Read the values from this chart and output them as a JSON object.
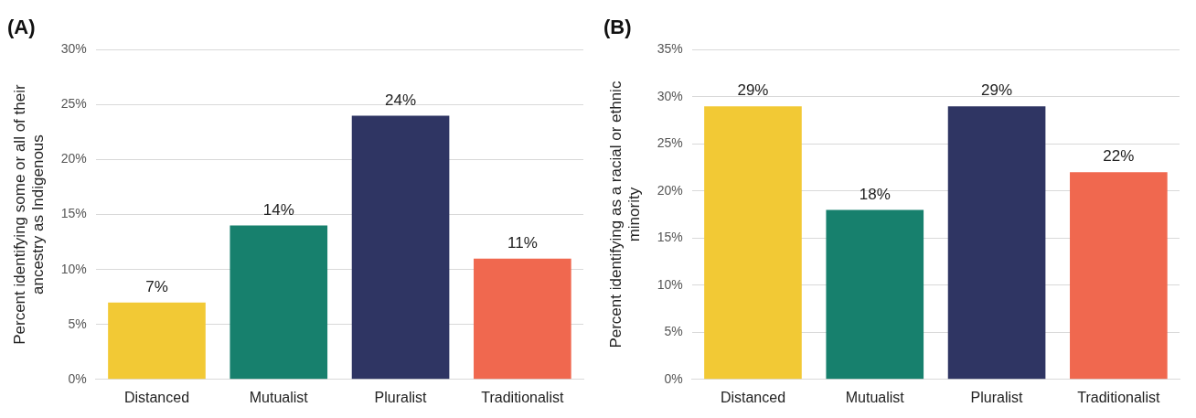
{
  "chart_data": [
    {
      "type": "bar",
      "title": "(A)",
      "ylabel": "Percent identifying some or all of their ancestry as Indigenous",
      "categories": [
        "Distanced",
        "Mutualist",
        "Pluralist",
        "Traditionalist"
      ],
      "values": [
        7,
        14,
        24,
        11
      ],
      "value_labels": [
        "7%",
        "14%",
        "24%",
        "11%"
      ],
      "colors": [
        "#f2c935",
        "#17806d",
        "#2f3563",
        "#f0684f"
      ],
      "ylim": [
        0,
        30
      ],
      "yticks": [
        {
          "value": 0,
          "label": "0%"
        },
        {
          "value": 5,
          "label": "5%"
        },
        {
          "value": 10,
          "label": "10%"
        },
        {
          "value": 15,
          "label": "15%"
        },
        {
          "value": 20,
          "label": "20%"
        },
        {
          "value": 25,
          "label": "25%"
        },
        {
          "value": 30,
          "label": "30%"
        }
      ],
      "grid": "y",
      "legend": false
    },
    {
      "type": "bar",
      "title": "(B)",
      "ylabel": "Percent identifying as a racial or ethnic minority",
      "categories": [
        "Distanced",
        "Mutualist",
        "Pluralist",
        "Traditionalist"
      ],
      "values": [
        29,
        18,
        29,
        22
      ],
      "value_labels": [
        "29%",
        "18%",
        "29%",
        "22%"
      ],
      "colors": [
        "#f2c935",
        "#17806d",
        "#2f3563",
        "#f0684f"
      ],
      "ylim": [
        0,
        35
      ],
      "yticks": [
        {
          "value": 0,
          "label": "0%"
        },
        {
          "value": 5,
          "label": "5%"
        },
        {
          "value": 10,
          "label": "10%"
        },
        {
          "value": 15,
          "label": "15%"
        },
        {
          "value": 20,
          "label": "20%"
        },
        {
          "value": 25,
          "label": "25%"
        },
        {
          "value": 30,
          "label": "30%"
        },
        {
          "value": 35,
          "label": "35%"
        }
      ],
      "grid": "y",
      "legend": false
    }
  ]
}
